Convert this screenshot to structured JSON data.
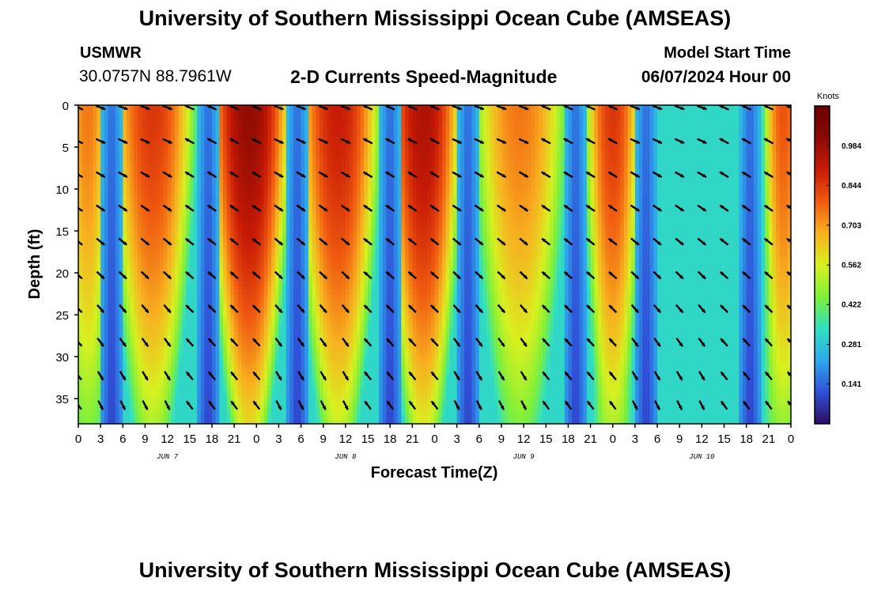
{
  "header": {
    "title": "University of Southern Mississippi Ocean Cube (AMSEAS)",
    "station": "USMWR",
    "coordinates": "30.0757N  88.7961W",
    "subtitle": "2-D Currents Speed-Magnitude",
    "model_start_label": "Model Start Time",
    "model_start_value": "06/07/2024 Hour 00"
  },
  "footer": {
    "title": "University of Southern Mississippi Ocean Cube (AMSEAS)"
  },
  "chart_data": {
    "type": "heatmap",
    "title": "2-D Currents Speed-Magnitude",
    "xlabel": "Forecast Time(Z)",
    "ylabel": "Depth (ft)",
    "x_range_hours": [
      0,
      96
    ],
    "ylim": [
      0,
      38
    ],
    "y_inverted": true,
    "y_ticks": [
      0,
      5,
      10,
      15,
      20,
      25,
      30,
      35
    ],
    "x_ticks": [
      {
        "hour": 0,
        "label": "0"
      },
      {
        "hour": 3,
        "label": "3"
      },
      {
        "hour": 6,
        "label": "6"
      },
      {
        "hour": 9,
        "label": "9"
      },
      {
        "hour": 12,
        "label": "12"
      },
      {
        "hour": 15,
        "label": "15"
      },
      {
        "hour": 18,
        "label": "18"
      },
      {
        "hour": 21,
        "label": "21"
      },
      {
        "hour": 24,
        "label": "0"
      },
      {
        "hour": 27,
        "label": "3"
      },
      {
        "hour": 30,
        "label": "6"
      },
      {
        "hour": 33,
        "label": "9"
      },
      {
        "hour": 36,
        "label": "12"
      },
      {
        "hour": 39,
        "label": "15"
      },
      {
        "hour": 42,
        "label": "18"
      },
      {
        "hour": 45,
        "label": "21"
      },
      {
        "hour": 48,
        "label": "0"
      },
      {
        "hour": 51,
        "label": "3"
      },
      {
        "hour": 54,
        "label": "6"
      },
      {
        "hour": 57,
        "label": "9"
      },
      {
        "hour": 60,
        "label": "12"
      },
      {
        "hour": 63,
        "label": "15"
      },
      {
        "hour": 66,
        "label": "18"
      },
      {
        "hour": 69,
        "label": "21"
      },
      {
        "hour": 72,
        "label": "0"
      },
      {
        "hour": 75,
        "label": "3"
      },
      {
        "hour": 78,
        "label": "6"
      },
      {
        "hour": 81,
        "label": "9"
      },
      {
        "hour": 84,
        "label": "12"
      },
      {
        "hour": 87,
        "label": "15"
      },
      {
        "hour": 90,
        "label": "18"
      },
      {
        "hour": 93,
        "label": "21"
      },
      {
        "hour": 96,
        "label": "0"
      }
    ],
    "date_labels": [
      {
        "hour": 12,
        "label": "JUN 7"
      },
      {
        "hour": 36,
        "label": "JUN 8"
      },
      {
        "hour": 60,
        "label": "JUN 9"
      },
      {
        "hour": 84,
        "label": "JUN 10"
      }
    ],
    "colorbar": {
      "units": "Knots",
      "min": 0.0,
      "max": 1.125,
      "ticks": [
        0.141,
        0.281,
        0.422,
        0.562,
        0.703,
        0.844,
        0.984
      ],
      "colors": [
        "#2a0f5e",
        "#3050d8",
        "#2ea8ec",
        "#30e0c0",
        "#7ef03a",
        "#d8f020",
        "#f8b020",
        "#f05a10",
        "#c81a06",
        "#8a0a04",
        "#6a0000"
      ]
    },
    "speed_bands": [
      {
        "t_start": 0,
        "t_end": 2.5,
        "peak": 0.75
      },
      {
        "t_start": 6,
        "t_end": 14,
        "peak": 0.85
      },
      {
        "t_start": 19,
        "t_end": 27,
        "peak": 1.0
      },
      {
        "t_start": 31,
        "t_end": 39,
        "peak": 0.9
      },
      {
        "t_start": 43,
        "t_end": 50,
        "peak": 0.95
      },
      {
        "t_start": 55,
        "t_end": 64,
        "peak": 0.75
      },
      {
        "t_start": 70,
        "t_end": 74,
        "peak": 0.85
      },
      {
        "t_start": 94,
        "t_end": 96,
        "peak": 0.8
      }
    ],
    "arrow_depths_ft": [
      0,
      4,
      8,
      12,
      16,
      20,
      24,
      28,
      32,
      35.5
    ],
    "arrow_hours": [
      0,
      3,
      6,
      9,
      12,
      15,
      18,
      21,
      24,
      27,
      30,
      33,
      36,
      39,
      42,
      45,
      48,
      51,
      54,
      57,
      60,
      63,
      66,
      69,
      72,
      75,
      78,
      81,
      84,
      87,
      90,
      93,
      96
    ]
  }
}
